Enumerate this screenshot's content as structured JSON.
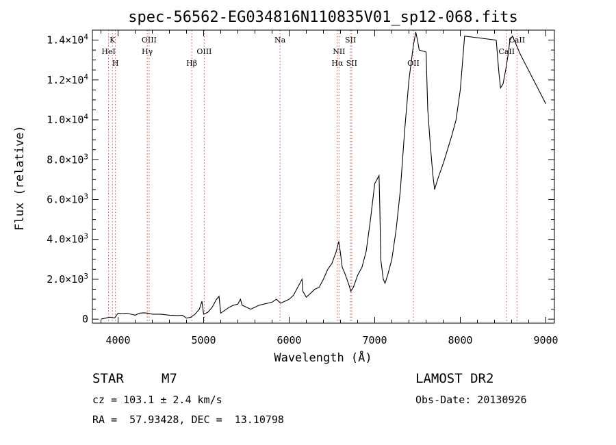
{
  "chart_data": {
    "type": "line",
    "title": "spec-56562-EG034816N110835V01_sp12-068.fits",
    "xlabel": "Wavelength (Å)",
    "ylabel": "Flux (relative)",
    "xlim": [
      3700,
      9100
    ],
    "ylim": [
      -200,
      14500
    ],
    "xticks": [
      4000,
      5000,
      6000,
      7000,
      8000,
      9000
    ],
    "yticks": [
      {
        "value": 0,
        "mant": "0",
        "exp": ""
      },
      {
        "value": 2000,
        "mant": "2.0×10",
        "exp": "3"
      },
      {
        "value": 4000,
        "mant": "4.0×10",
        "exp": "3"
      },
      {
        "value": 6000,
        "mant": "6.0×10",
        "exp": "3"
      },
      {
        "value": 8000,
        "mant": "8.0×10",
        "exp": "3"
      },
      {
        "value": 10000,
        "mant": "1.0×10",
        "exp": "4"
      },
      {
        "value": 12000,
        "mant": "1.2×10",
        "exp": "4"
      },
      {
        "value": 14000,
        "mant": "1.4×10",
        "exp": "4"
      }
    ],
    "series": [
      {
        "color": "#000000",
        "points": [
          [
            3800,
            0
          ],
          [
            3900,
            100
          ],
          [
            3960,
            60
          ],
          [
            4000,
            300
          ],
          [
            4050,
            280
          ],
          [
            4100,
            300
          ],
          [
            4150,
            250
          ],
          [
            4200,
            200
          ],
          [
            4250,
            300
          ],
          [
            4300,
            320
          ],
          [
            4350,
            300
          ],
          [
            4400,
            250
          ],
          [
            4500,
            250
          ],
          [
            4600,
            200
          ],
          [
            4700,
            180
          ],
          [
            4750,
            200
          ],
          [
            4800,
            50
          ],
          [
            4850,
            100
          ],
          [
            4900,
            250
          ],
          [
            4950,
            500
          ],
          [
            4980,
            900
          ],
          [
            5000,
            250
          ],
          [
            5050,
            350
          ],
          [
            5100,
            600
          ],
          [
            5150,
            1000
          ],
          [
            5180,
            1150
          ],
          [
            5200,
            300
          ],
          [
            5250,
            450
          ],
          [
            5300,
            600
          ],
          [
            5350,
            700
          ],
          [
            5400,
            750
          ],
          [
            5430,
            1000
          ],
          [
            5450,
            700
          ],
          [
            5500,
            600
          ],
          [
            5550,
            500
          ],
          [
            5600,
            600
          ],
          [
            5650,
            700
          ],
          [
            5700,
            750
          ],
          [
            5750,
            800
          ],
          [
            5800,
            850
          ],
          [
            5850,
            1000
          ],
          [
            5900,
            800
          ],
          [
            5950,
            900
          ],
          [
            6000,
            1000
          ],
          [
            6050,
            1200
          ],
          [
            6100,
            1600
          ],
          [
            6150,
            2000
          ],
          [
            6160,
            1400
          ],
          [
            6200,
            1100
          ],
          [
            6250,
            1300
          ],
          [
            6300,
            1500
          ],
          [
            6350,
            1600
          ],
          [
            6400,
            2000
          ],
          [
            6450,
            2500
          ],
          [
            6500,
            2800
          ],
          [
            6550,
            3400
          ],
          [
            6580,
            3900
          ],
          [
            6600,
            3300
          ],
          [
            6620,
            2600
          ],
          [
            6650,
            2300
          ],
          [
            6700,
            1700
          ],
          [
            6720,
            1400
          ],
          [
            6750,
            1600
          ],
          [
            6800,
            2200
          ],
          [
            6850,
            2600
          ],
          [
            6900,
            3400
          ],
          [
            6950,
            5000
          ],
          [
            7000,
            6800
          ],
          [
            7050,
            7200
          ],
          [
            7060,
            5500
          ],
          [
            7070,
            3000
          ],
          [
            7100,
            2000
          ],
          [
            7120,
            1800
          ],
          [
            7150,
            2200
          ],
          [
            7200,
            3000
          ],
          [
            7250,
            4500
          ],
          [
            7300,
            6500
          ],
          [
            7350,
            9500
          ],
          [
            7400,
            12000
          ],
          [
            7450,
            13700
          ],
          [
            7480,
            14400
          ],
          [
            7500,
            14000
          ],
          [
            7520,
            13500
          ],
          [
            7600,
            13400
          ],
          [
            7620,
            10500
          ],
          [
            7650,
            8700
          ],
          [
            7680,
            7200
          ],
          [
            7700,
            6500
          ],
          [
            7720,
            6800
          ],
          [
            7750,
            7200
          ],
          [
            7800,
            7800
          ],
          [
            7850,
            8500
          ],
          [
            7900,
            9200
          ],
          [
            7950,
            10000
          ],
          [
            8000,
            11500
          ],
          [
            8050,
            14200
          ],
          [
            8420,
            14000
          ],
          [
            8450,
            12400
          ],
          [
            8470,
            11600
          ],
          [
            8500,
            11800
          ],
          [
            8530,
            12500
          ],
          [
            8560,
            13300
          ],
          [
            8580,
            14000
          ],
          [
            8610,
            14200
          ],
          [
            8700,
            13300
          ],
          [
            9000,
            10800
          ]
        ]
      }
    ],
    "lines": [
      {
        "w": 3934,
        "label": "K",
        "row": 0
      },
      {
        "w": 3889,
        "label": "HeI",
        "row": 1
      },
      {
        "w": 3969,
        "label": "H",
        "row": 2
      },
      {
        "w": 4363,
        "label": "OIII",
        "row": 0
      },
      {
        "w": 4341,
        "label": "Hγ",
        "row": 1
      },
      {
        "w": 4861,
        "label": "Hβ",
        "row": 2
      },
      {
        "w": 5007,
        "label": "OIII",
        "row": 1
      },
      {
        "w": 5893,
        "label": "Na",
        "row": 0
      },
      {
        "w": 6583,
        "label": "NII",
        "row": 1
      },
      {
        "w": 6563,
        "label": "Hα",
        "row": 2
      },
      {
        "w": 6717,
        "label": "SII",
        "row": 0
      },
      {
        "w": 6731,
        "label": "SII",
        "row": 2
      },
      {
        "w": 7452,
        "label": "OII",
        "row": 2
      },
      {
        "w": 8542,
        "label": "CaII",
        "row": 1
      },
      {
        "w": 8662,
        "label": "CaII",
        "row": 0
      }
    ],
    "grid": false,
    "legend": "none"
  },
  "info": {
    "class_label": "STAR",
    "subclass": "M7",
    "survey": "LAMOST DR2",
    "cz": "cz = 103.1 ± 2.4 km/s",
    "obs_date": "Obs-Date: 20130926",
    "radec": "RA =  57.93428, DEC =  13.10798"
  },
  "colors": {
    "spectrum": "#000000",
    "line_markers": "#e04040",
    "axes": "#000000"
  }
}
